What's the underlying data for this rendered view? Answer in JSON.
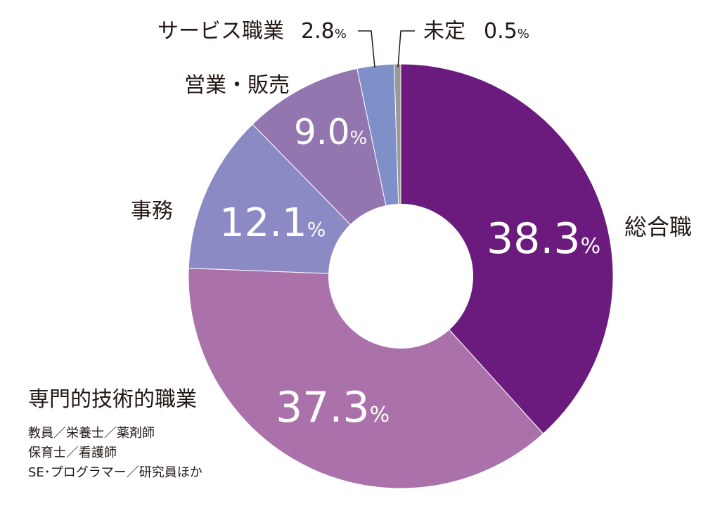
{
  "chart_data": {
    "type": "pie",
    "variant": "donut",
    "title": "",
    "unit": "%",
    "categories": [
      "総合職",
      "専門的技術的職業",
      "事務",
      "営業・販売",
      "サービス職業",
      "未定"
    ],
    "values": [
      38.3,
      37.3,
      12.1,
      9.0,
      2.8,
      0.5
    ],
    "value_labels": [
      "38.3",
      "37.3",
      "12.1",
      "9.0",
      "2.8",
      "0.5"
    ],
    "colors": [
      "#6a1b7d",
      "#aa71ab",
      "#8c8ac4",
      "#9375af",
      "#7f90c9",
      "#999999"
    ],
    "start": "12 o'clock",
    "direction": "clockwise",
    "notes": {
      "専門的技術的職業": [
        "教員／栄養士／薬剤師",
        "保育士／看護師",
        "SE･プログラマー／研究員ほか"
      ]
    }
  }
}
